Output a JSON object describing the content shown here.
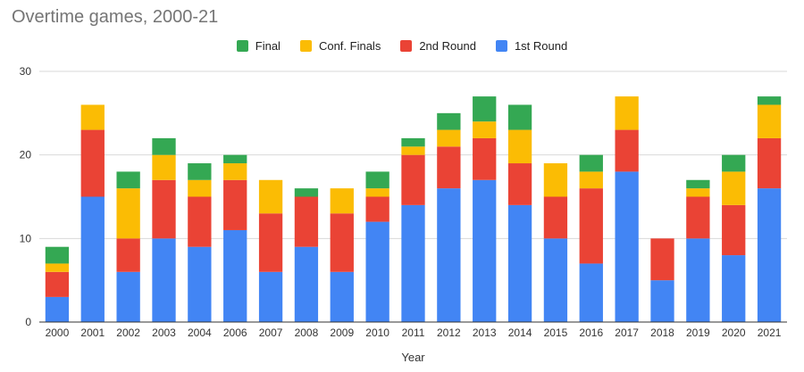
{
  "chart_data": {
    "type": "bar",
    "stacked": true,
    "title": "Overtime games, 2000-21",
    "xlabel": "Year",
    "ylabel": "",
    "ylim": [
      0,
      30
    ],
    "yticks": [
      0,
      10,
      20,
      30
    ],
    "grid": true,
    "legend_position": "top",
    "categories": [
      "2000",
      "2001",
      "2002",
      "2003",
      "2004",
      "2006",
      "2007",
      "2008",
      "2009",
      "2010",
      "2011",
      "2012",
      "2013",
      "2014",
      "2015",
      "2016",
      "2017",
      "2018",
      "2019",
      "2020",
      "2021"
    ],
    "series": [
      {
        "name": "1st Round",
        "color": "#4285F4",
        "values": [
          3,
          15,
          6,
          10,
          9,
          11,
          6,
          9,
          6,
          12,
          14,
          16,
          17,
          14,
          10,
          7,
          18,
          5,
          10,
          8,
          16
        ]
      },
      {
        "name": "2nd Round",
        "color": "#EA4335",
        "values": [
          3,
          8,
          4,
          7,
          6,
          6,
          7,
          6,
          7,
          3,
          6,
          5,
          5,
          5,
          5,
          9,
          5,
          5,
          5,
          6,
          6
        ]
      },
      {
        "name": "Conf. Finals",
        "color": "#FBBC04",
        "values": [
          1,
          3,
          6,
          3,
          2,
          2,
          4,
          0,
          3,
          1,
          1,
          2,
          2,
          4,
          4,
          2,
          4,
          0,
          1,
          4,
          4
        ]
      },
      {
        "name": "Final",
        "color": "#34A853",
        "values": [
          2,
          0,
          2,
          2,
          2,
          1,
          0,
          1,
          0,
          2,
          1,
          2,
          3,
          3,
          0,
          2,
          0,
          0,
          1,
          2,
          1
        ]
      }
    ],
    "legend_order": [
      "Final",
      "Conf. Finals",
      "2nd Round",
      "1st Round"
    ]
  }
}
